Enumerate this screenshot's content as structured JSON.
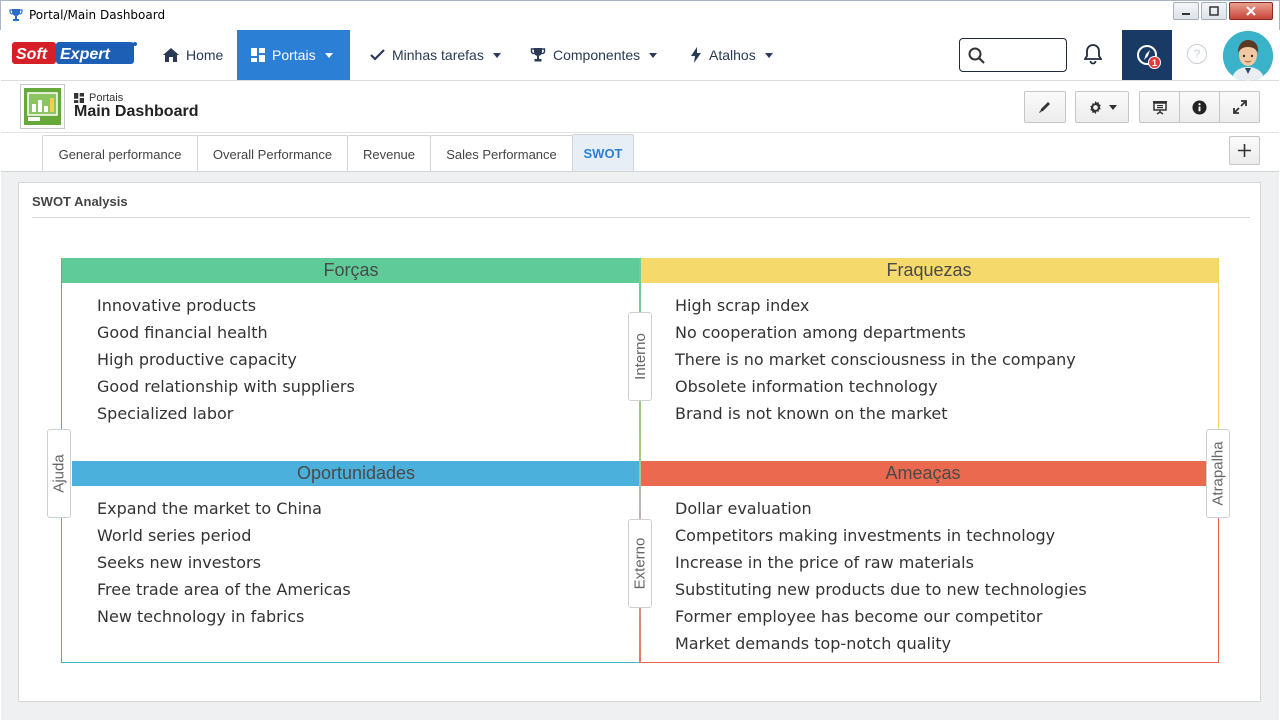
{
  "window": {
    "title": "Portal/Main Dashboard"
  },
  "nav": {
    "logo_text": "SoftExpert",
    "items": [
      {
        "label": "Home",
        "icon": "home-icon",
        "has_caret": false
      },
      {
        "label": "Portais",
        "icon": "dashboard-icon",
        "has_caret": true,
        "active": true
      },
      {
        "label": "Minhas tarefas",
        "icon": "check-icon",
        "has_caret": true
      },
      {
        "label": "Componentes",
        "icon": "trophy-icon",
        "has_caret": true
      },
      {
        "label": "Atalhos",
        "icon": "lightning-icon",
        "has_caret": true
      }
    ],
    "search_placeholder": "",
    "task_badge": "1"
  },
  "header": {
    "breadcrumb": "Portais",
    "title": "Main Dashboard"
  },
  "tabs": [
    {
      "label": "General performance"
    },
    {
      "label": "Overall Performance"
    },
    {
      "label": "Revenue"
    },
    {
      "label": "Sales Performance"
    },
    {
      "label": "SWOT",
      "active": true
    }
  ],
  "panel": {
    "title": "SWOT Analysis"
  },
  "swot": {
    "strengths": {
      "title": "Forças",
      "color": "#5fcb99",
      "items": [
        "Innovative products",
        "Good financial health",
        "High productive capacity",
        "Good relationship with suppliers",
        "Specialized labor"
      ]
    },
    "weaknesses": {
      "title": "Fraquezas",
      "color": "#f5d96a",
      "items": [
        "High scrap index",
        "No cooperation among departments",
        "There is no market consciousness in the company",
        "Obsolete information technology",
        "Brand is not known on the market"
      ]
    },
    "opportunities": {
      "title": "Oportunidades",
      "color": "#4bb1dc",
      "items": [
        "Expand the market to China",
        "World series period",
        "Seeks new investors",
        "Free trade area of the Americas",
        "New technology in fabrics"
      ]
    },
    "threats": {
      "title": "Ameaças",
      "color": "#eb6a4f",
      "items": [
        "Dollar evaluation",
        "Competitors making investments in technology",
        "Increase in the price of raw materials",
        "Substituting new products due to new technologies",
        "Former employee has become our competitor",
        "Market demands top-notch quality"
      ]
    },
    "labels": {
      "internal": "Interno",
      "external": "Externo",
      "helps": "Ajuda",
      "hinders": "Atrapalha"
    }
  }
}
